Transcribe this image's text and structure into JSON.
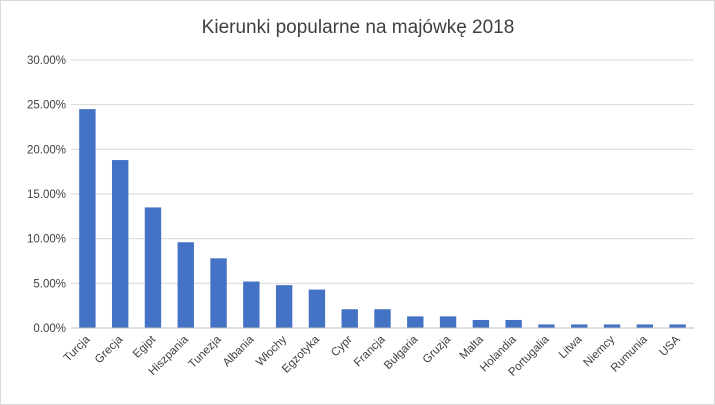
{
  "chart_data": {
    "type": "bar",
    "title": "Kierunki popularne na majówkę 2018",
    "xlabel": "",
    "ylabel": "",
    "categories": [
      "Turcja",
      "Grecja",
      "Egipt",
      "Hiszpania",
      "Tunezja",
      "Albania",
      "Włochy",
      "Egzotyka",
      "Cypr",
      "Francja",
      "Bułgaria",
      "Gruzja",
      "Malta",
      "Holandia",
      "Portugalia",
      "Litwa",
      "Niemcy",
      "Rumunia",
      "USA"
    ],
    "values": [
      24.5,
      18.8,
      13.5,
      9.6,
      7.8,
      5.2,
      4.8,
      4.3,
      2.1,
      2.1,
      1.3,
      1.3,
      0.9,
      0.9,
      0.4,
      0.4,
      0.4,
      0.4,
      0.4
    ],
    "ylim": [
      0,
      30
    ],
    "yticks": [
      "0.00%",
      "5.00%",
      "10.00%",
      "15.00%",
      "20.00%",
      "25.00%",
      "30.00%"
    ],
    "grid": true,
    "legend": "none",
    "bar_color": "#4472c4"
  }
}
